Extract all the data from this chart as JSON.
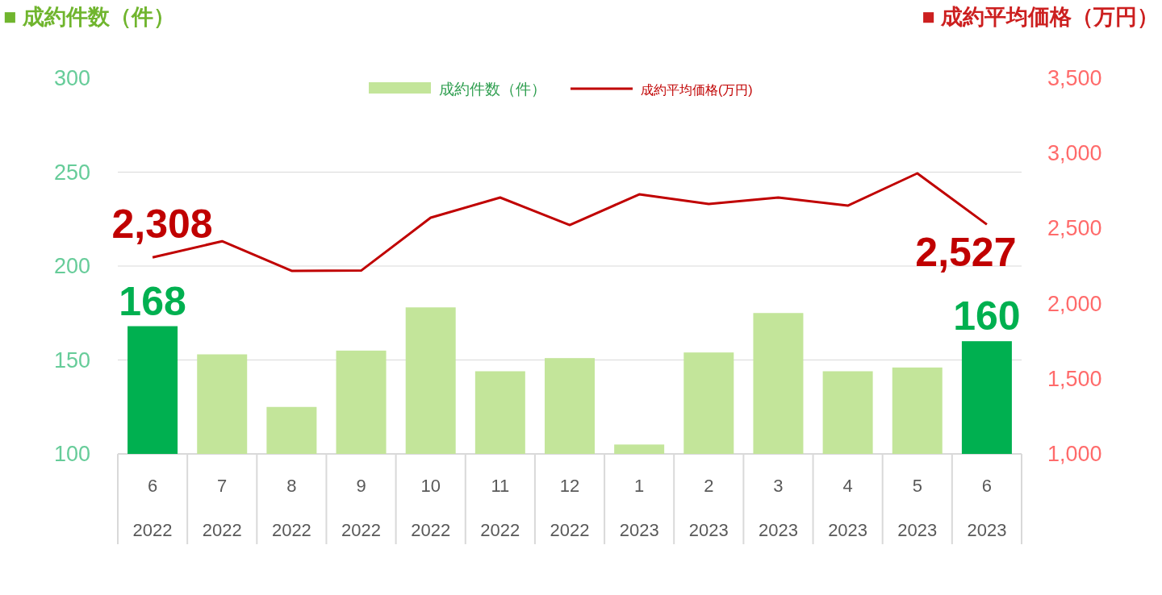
{
  "chart_data": {
    "type": "bar",
    "ylabel": "■ 成約件数（件）",
    "y2label": "■ 成約平均価格（万円）",
    "categories": [
      "6\n2022",
      "7\n2022",
      "8\n2022",
      "9\n2022",
      "10\n2022",
      "11\n2022",
      "12\n2022",
      "1\n2023",
      "2\n2023",
      "3\n2023",
      "4\n2023",
      "5\n2023",
      "6\n2023"
    ],
    "ylim": [
      100,
      300
    ],
    "yticks": [
      100,
      150,
      200,
      250,
      300
    ],
    "y2lim": [
      1000,
      3500
    ],
    "y2ticks": [
      {
        "value": 1000,
        "label": "1,000"
      },
      {
        "value": 1500,
        "label": "1,500"
      },
      {
        "value": 2000,
        "label": "2,000"
      },
      {
        "value": 2500,
        "label": "2,500"
      },
      {
        "value": 3000,
        "label": "3,000"
      },
      {
        "value": 3500,
        "label": "3,500"
      }
    ],
    "grid": "y",
    "legend": "top",
    "series": [
      {
        "name": "成約件数（件）",
        "color": "#c3e59a",
        "colors": [
          "#00b050",
          "#c3e59a",
          "#c3e59a",
          "#c3e59a",
          "#c3e59a",
          "#c3e59a",
          "#c3e59a",
          "#c3e59a",
          "#c3e59a",
          "#c3e59a",
          "#c3e59a",
          "#c3e59a",
          "#00b050"
        ],
        "values": [
          168,
          153,
          125,
          155,
          178,
          144,
          151,
          105,
          154,
          175,
          144,
          146,
          160
        ],
        "value_labels": [
          "168",
          null,
          null,
          null,
          null,
          null,
          null,
          null,
          null,
          null,
          null,
          null,
          "160"
        ]
      },
      {
        "name": "成約平均価格(万円)",
        "type": "line",
        "axis": "y2",
        "color": "#c00000",
        "values": [
          2308,
          2415,
          2218,
          2220,
          2572,
          2706,
          2523,
          2727,
          2663,
          2706,
          2652,
          2867,
          2527
        ],
        "value_labels": [
          "2,308",
          null,
          null,
          null,
          null,
          null,
          null,
          null,
          null,
          null,
          null,
          null,
          "2,527"
        ]
      }
    ]
  }
}
